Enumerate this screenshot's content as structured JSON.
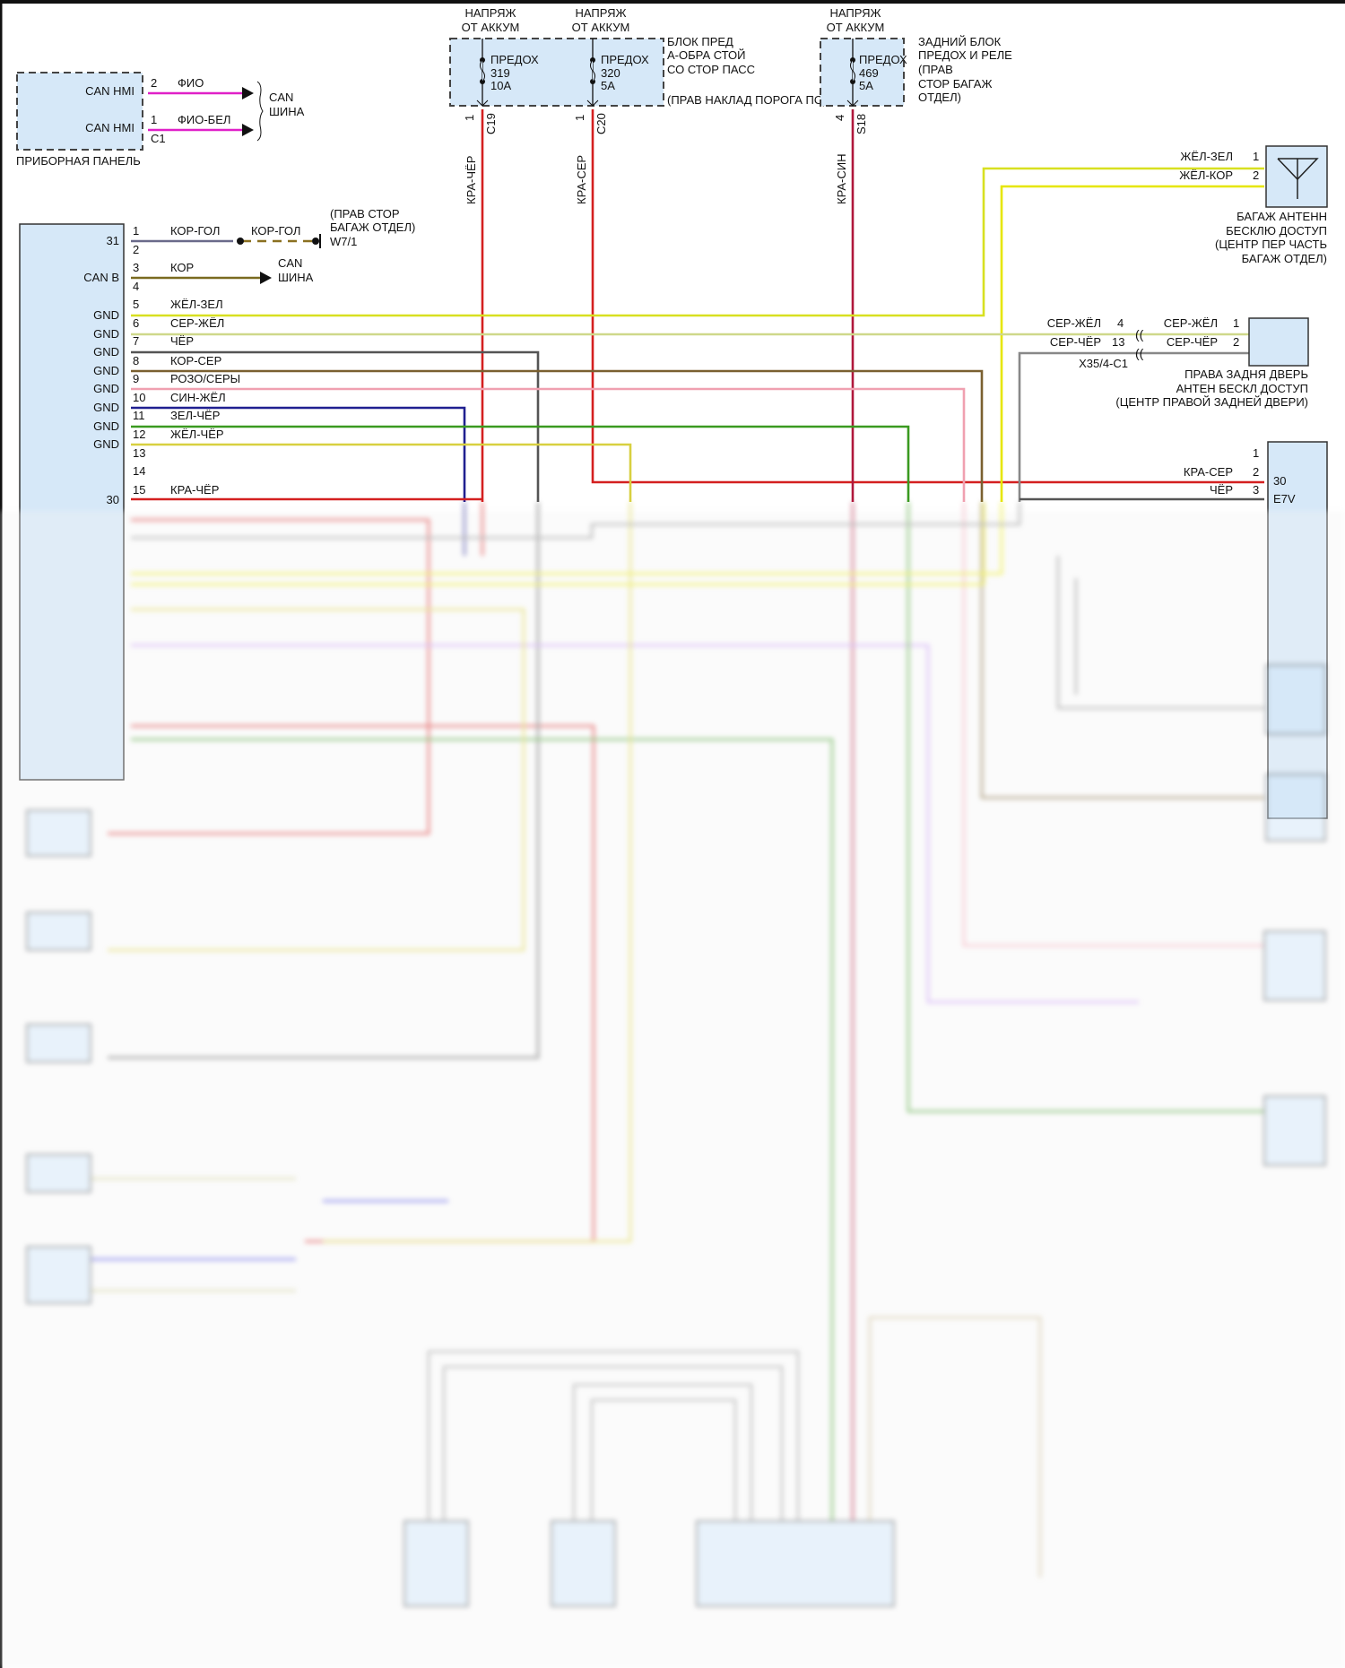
{
  "colors": {
    "fio": "#e020c8",
    "red": "#d42020",
    "crimson": "#b0183c",
    "yel_zel": "#d8e020",
    "yel_kor": "#e6e600",
    "ser_yel": "#cfd88a",
    "black": "#555555",
    "brown": "#7a6030",
    "pink": "#f0a0b0",
    "blue": "#202090",
    "green": "#3a9a20",
    "yel_black": "#d8d040",
    "gray": "#888888",
    "box_fill": "#d6e8f8"
  },
  "instrument_panel": {
    "label": "ПРИБОРНАЯ ПАНЕЛЬ",
    "pins": [
      {
        "name": "CAN HMI",
        "pin": "2",
        "wire": "ФИО"
      },
      {
        "name": "CAN HMI",
        "pin": "1",
        "wire": "ФИО-БЕЛ"
      }
    ],
    "connector": "C1",
    "bus": [
      "CAN",
      "ШИНА"
    ]
  },
  "fuse_block_front": {
    "supply": [
      [
        "НАПРЯЖ",
        "ОТ АККУМ"
      ],
      [
        "НАПРЯЖ",
        "ОТ АККУМ"
      ]
    ],
    "fuses": [
      {
        "label": "ПРЕДОХ",
        "number": "319",
        "rating": "10A",
        "pin": "1",
        "connector": "C19",
        "wire": "КРА-ЧЁР"
      },
      {
        "label": "ПРЕДОХ",
        "number": "320",
        "rating": "5A",
        "pin": "1",
        "connector": "C20",
        "wire": "КРА-СЕР"
      }
    ],
    "description": [
      "БЛОК ПРЕД",
      "А-ОБРА СТОЙ",
      "СО СТОР ПАСС",
      "(ПРАВ НАКЛАД ПОРОГА ПОД ТОРП)"
    ]
  },
  "fuse_block_rear": {
    "supply": [
      "НАПРЯЖ",
      "ОТ АККУМ"
    ],
    "fuse": {
      "label": "ПРЕДОХ",
      "number": "469",
      "rating": "5A",
      "pin": "4",
      "connector": "S18",
      "wire": "КРА-СИН"
    },
    "description": [
      "ЗАДНИЙ БЛОК",
      "ПРЕДОХ И РЕЛЕ",
      "(ПРАВ",
      "СТОР БАГАЖ",
      "ОТДЕЛ)"
    ]
  },
  "module": {
    "left_labels": {
      "p31": "31",
      "canb": "CAN B",
      "gnd": "GND",
      "p30": "30"
    },
    "pins": [
      "1",
      "2",
      "3",
      "4",
      "5",
      "6",
      "7",
      "8",
      "9",
      "10",
      "11",
      "12",
      "13",
      "14",
      "15"
    ],
    "wires": {
      "p1": "КОР-ГОЛ",
      "p3": "КОР",
      "p5": "ЖЁЛ-ЗЕЛ",
      "p6": "СЕР-ЖЁЛ",
      "p7": "ЧЁР",
      "p8": "КОР-СЕР",
      "p9": "РОЗО/СЕРЫ",
      "p10": "СИН-ЖЁЛ",
      "p11": "ЗЕЛ-ЧЁР",
      "p12": "ЖЁЛ-ЧЁР",
      "p15": "КРА-ЧЁР"
    },
    "ground": {
      "wire": "КОР-ГОЛ",
      "location": [
        "(ПРАВ СТОР",
        "БАГАЖ ОТДЕЛ)"
      ],
      "id": "W7/1"
    },
    "bus": [
      "CAN",
      "ШИНА"
    ]
  },
  "trunk_antenna": {
    "pins": [
      {
        "wire": "ЖЁЛ-ЗЕЛ",
        "pin": "1"
      },
      {
        "wire": "ЖЁЛ-КОР",
        "pin": "2"
      }
    ],
    "label": [
      "БАГАЖ АНТЕНН",
      "БЕСКЛЮ ДОСТУП",
      "(ЦЕНТР ПЕР ЧАСТЬ",
      "БАГАЖ ОТДЕЛ)"
    ]
  },
  "rear_door_antenna": {
    "inline": [
      {
        "wire": "СЕР-ЖЁЛ",
        "pin": "4"
      },
      {
        "wire": "СЕР-ЧЁР",
        "pin": "13"
      }
    ],
    "connector": "X35/4-C1",
    "pins": [
      {
        "wire": "СЕР-ЖЁЛ",
        "pin": "1"
      },
      {
        "wire": "СЕР-ЧЁР",
        "pin": "2"
      }
    ],
    "label": [
      "ПРАВА ЗАДНЯ ДВЕРЬ",
      "АНТЕН БЕСКЛ ДОСТУП",
      "(ЦЕНТР ПРАВОЙ ЗАДНЕЙ ДВЕРИ)"
    ]
  },
  "relay_box": {
    "pins": [
      {
        "wire": "",
        "pin": "1"
      },
      {
        "wire": "КРА-СЕР",
        "pin": "2"
      },
      {
        "wire": "ЧЁР",
        "pin": "3"
      }
    ],
    "inner": [
      "30",
      "E7V"
    ]
  }
}
